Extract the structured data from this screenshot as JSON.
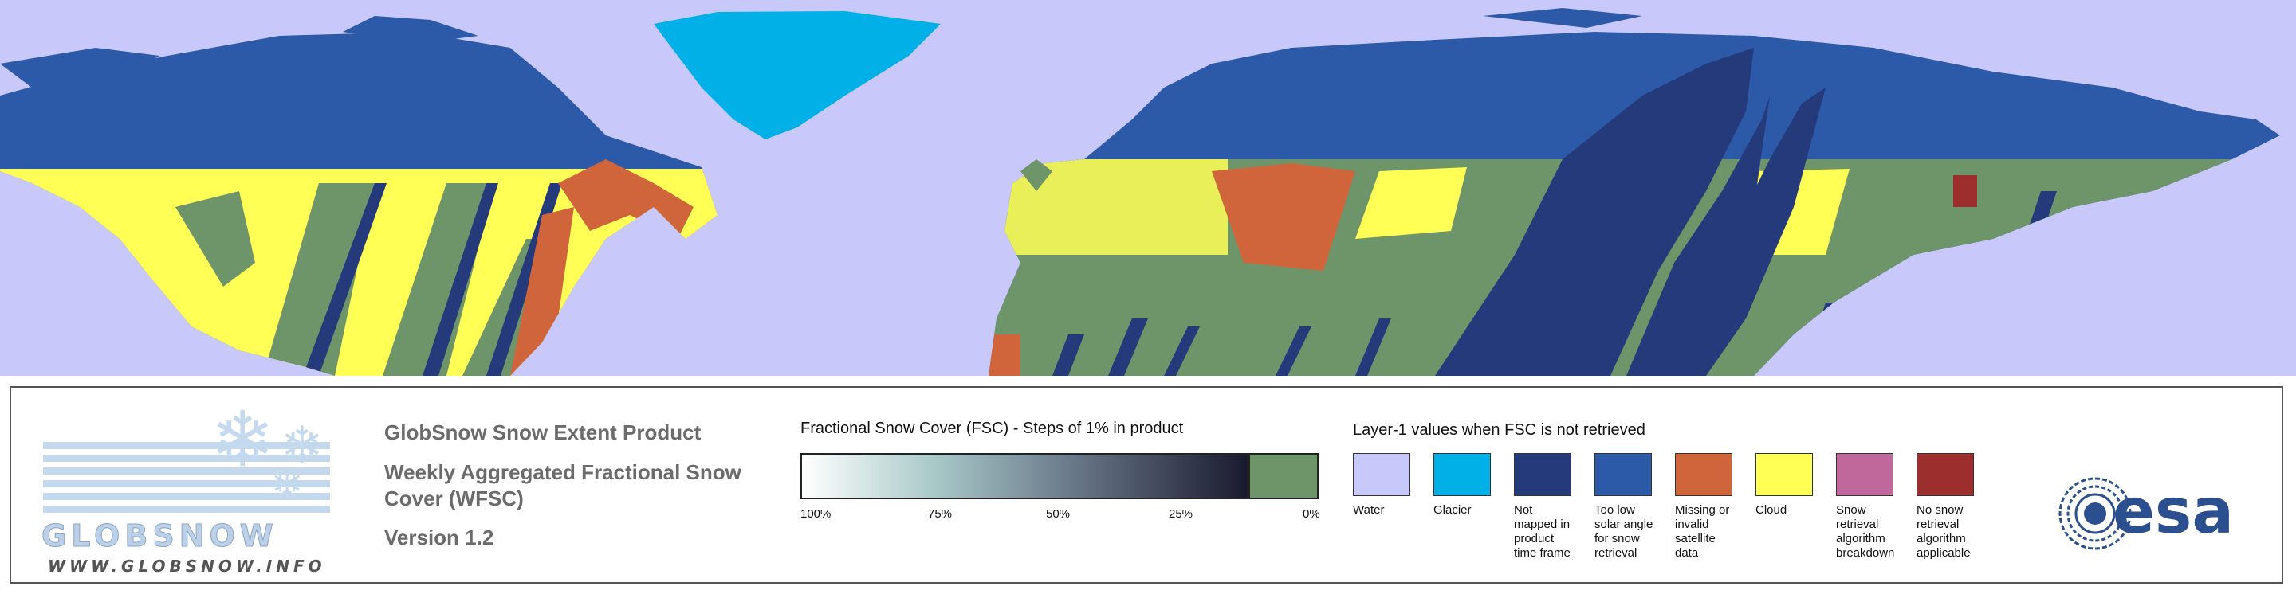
{
  "logo": {
    "name": "GLOBSNOW",
    "url": "WWW.GLOBSNOW.INFO"
  },
  "product": {
    "line1": "GlobSnow Snow Extent Product",
    "line2a": "Weekly Aggregated Fractional Snow",
    "line2b": "Cover (WFSC)",
    "version": "Version 1.2"
  },
  "fsc_scale": {
    "title": "Fractional Snow Cover (FSC) - Steps of 1% in product",
    "ticks": [
      "100%",
      "75%",
      "50%",
      "25%",
      "0%"
    ],
    "gradient_start": "#ffffff",
    "gradient_end": "#1a1a2e",
    "zero_color": "#6e946a"
  },
  "layer1": {
    "title": "Layer-1 values when FSC is not retrieved",
    "items": [
      {
        "label": [
          "Water"
        ],
        "color": "#c8c8fa"
      },
      {
        "label": [
          "Glacier"
        ],
        "color": "#00b0e6"
      },
      {
        "label": [
          "Not",
          "mapped in",
          "product",
          "time frame"
        ],
        "color": "#253a7a"
      },
      {
        "label": [
          "Too low",
          "solar angle",
          "for snow",
          "retrieval"
        ],
        "color": "#2c5aa8"
      },
      {
        "label": [
          "Missing or",
          "invalid satellite",
          "data"
        ],
        "color": "#d0653c"
      },
      {
        "label": [
          "Cloud"
        ],
        "color": "#ffff55"
      },
      {
        "label": [
          "Snow retrieval",
          "algorithm",
          "breakdown"
        ],
        "color": "#c0679c"
      },
      {
        "label": [
          "No snow",
          "retrieval",
          "algorithm",
          "applicable"
        ],
        "color": "#9c2e2e"
      }
    ]
  },
  "esa_logo": {
    "text": "esa",
    "color": "#2b4f8f"
  },
  "colors": {
    "ocean": "#c8c8fa",
    "tundra_blue": "#2c5aa8",
    "glacier": "#00b0e6",
    "not_mapped": "#253a7a",
    "cloud": "#ffff55",
    "missing": "#d0653c",
    "no_snow": "#6e946a"
  }
}
